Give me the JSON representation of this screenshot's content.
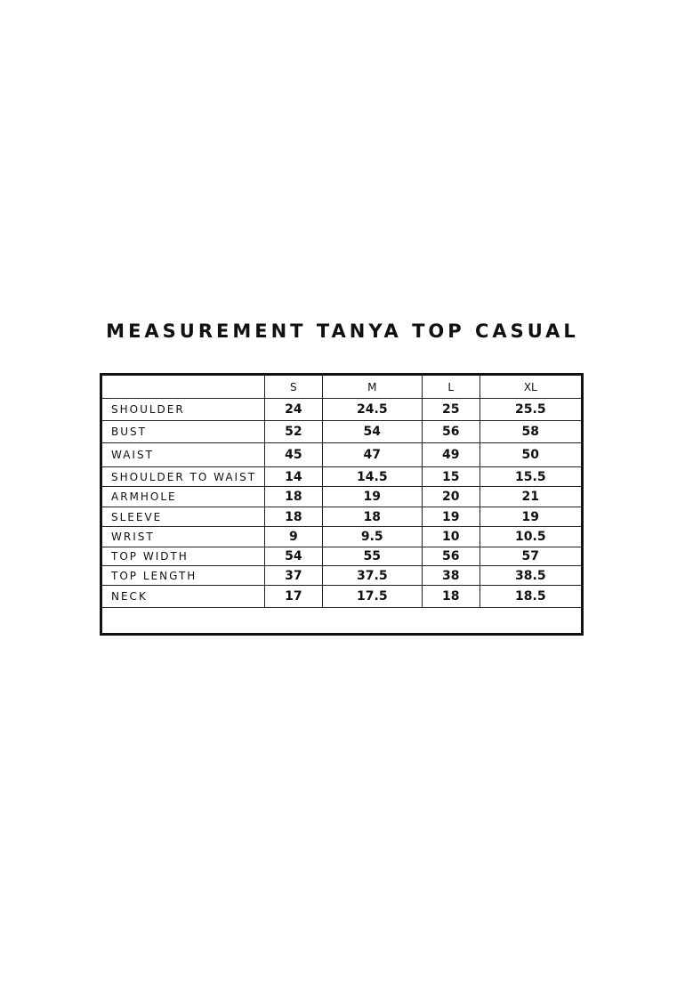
{
  "title": "MEASUREMENT TANYA TOP CASUAL",
  "sizes": [
    "S",
    "M",
    "L",
    "XL"
  ],
  "rows": [
    {
      "label": "SHOULDER",
      "values": [
        "24",
        "24.5",
        "25",
        "25.5"
      ]
    },
    {
      "label": "BUST",
      "values": [
        "52",
        "54",
        "56",
        "58"
      ]
    },
    {
      "label": "WAIST",
      "values": [
        "45",
        "47",
        "49",
        "50"
      ]
    },
    {
      "label": "SHOULDER TO WAIST",
      "values": [
        "14",
        "14.5",
        "15",
        "15.5"
      ]
    },
    {
      "label": "ARMHOLE",
      "values": [
        "18",
        "19",
        "20",
        "21"
      ]
    },
    {
      "label": "SLEEVE",
      "values": [
        "18",
        "18",
        "19",
        "19"
      ]
    },
    {
      "label": "WRIST",
      "values": [
        "9",
        "9.5",
        "10",
        "10.5"
      ]
    },
    {
      "label": "TOP WIDTH",
      "values": [
        "54",
        "55",
        "56",
        "57"
      ]
    },
    {
      "label": "TOP LENGTH",
      "values": [
        "37",
        "37.5",
        "38",
        "38.5"
      ]
    },
    {
      "label": "NECK",
      "values": [
        "17",
        "17.5",
        "18",
        "18.5"
      ]
    }
  ]
}
